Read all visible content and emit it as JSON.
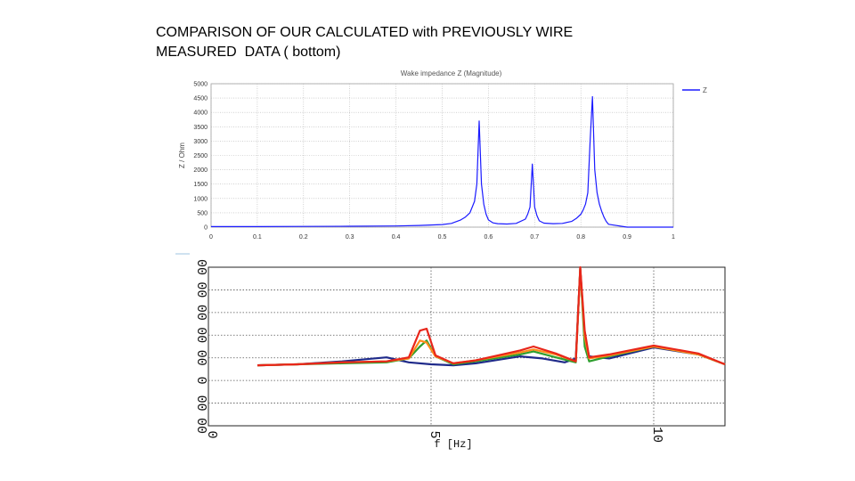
{
  "slide": {
    "title_line1": "COMPARISON OF OUR CALCULATED with PREVIOUSLY WIRE",
    "title_line2": "MEASURED  DATA ( bottom)"
  },
  "colors": {
    "top_line": "#1a1aff",
    "blue": "#1f2a8a",
    "green": "#2e9e2e",
    "orange": "#ff8c1a",
    "red": "#e8261a"
  },
  "chart_data": [
    {
      "type": "line",
      "title": "Wake impedance Z (Magnitude)",
      "xlabel": "",
      "ylabel": "Z / Ohm",
      "xlim": [
        0,
        1
      ],
      "ylim": [
        0,
        5000
      ],
      "xticks": [
        "0",
        "0.1",
        "0.2",
        "0.3",
        "0.4",
        "0.5",
        "0.6",
        "0.7",
        "0.8",
        "0.9",
        "1"
      ],
      "yticks": [
        "0",
        "500",
        "1000",
        "1500",
        "2000",
        "2500",
        "3000",
        "3500",
        "4000",
        "4500",
        "5000"
      ],
      "grid": true,
      "legend": "top-right",
      "series": [
        {
          "name": "Z",
          "color": "#1a1aff",
          "x": [
            0,
            0.1,
            0.2,
            0.3,
            0.4,
            0.45,
            0.5,
            0.52,
            0.54,
            0.55,
            0.56,
            0.565,
            0.57,
            0.575,
            0.58,
            0.585,
            0.59,
            0.595,
            0.6,
            0.61,
            0.62,
            0.64,
            0.66,
            0.68,
            0.685,
            0.69,
            0.695,
            0.7,
            0.705,
            0.71,
            0.72,
            0.74,
            0.76,
            0.78,
            0.79,
            0.8,
            0.805,
            0.81,
            0.815,
            0.82,
            0.825,
            0.83,
            0.835,
            0.84,
            0.845,
            0.85,
            0.855,
            0.86,
            0.9,
            1.0
          ],
          "y": [
            20,
            20,
            25,
            30,
            40,
            60,
            90,
            130,
            250,
            350,
            500,
            700,
            900,
            1500,
            3700,
            1500,
            800,
            450,
            250,
            150,
            120,
            110,
            130,
            280,
            450,
            700,
            2200,
            700,
            400,
            220,
            140,
            120,
            130,
            200,
            300,
            450,
            600,
            800,
            1200,
            3000,
            4550,
            2000,
            1200,
            800,
            550,
            350,
            200,
            100,
            0,
            0
          ]
        }
      ]
    },
    {
      "type": "line",
      "title": "",
      "xlabel": "f [Hz]",
      "ylabel": "",
      "xlim": [
        0,
        11.6
      ],
      "ylim": [
        -3,
        5
      ],
      "xticks": [
        "0",
        "5",
        "10"
      ],
      "yticks": [
        "00",
        "00",
        "00",
        "00",
        "00",
        "0",
        "00",
        "00"
      ],
      "grid": true,
      "legend": "none",
      "series": [
        {
          "color": "#1f2a8a",
          "x": [
            1.1,
            2,
            3,
            4,
            4.5,
            5,
            5.5,
            6,
            7,
            7.5,
            8,
            8.25,
            8.35,
            8.45,
            8.55,
            9,
            10,
            11,
            11.6
          ],
          "y": [
            0.05,
            0.1,
            0.25,
            0.45,
            0.2,
            0.1,
            0.05,
            0.15,
            0.5,
            0.4,
            0.2,
            0.4,
            4.9,
            1.5,
            0.5,
            0.4,
            0.95,
            0.6,
            0.1
          ]
        },
        {
          "color": "#2e9e2e",
          "x": [
            1.1,
            2,
            3,
            4,
            4.5,
            4.75,
            4.9,
            5.1,
            5.5,
            6,
            7,
            7.3,
            7.8,
            8.25,
            8.35,
            8.45,
            8.55,
            9,
            10,
            11,
            11.6
          ],
          "y": [
            0.05,
            0.1,
            0.15,
            0.2,
            0.4,
            1.0,
            1.3,
            0.5,
            0.1,
            0.25,
            0.6,
            0.75,
            0.45,
            0.2,
            4.95,
            1.0,
            0.25,
            0.5,
            1.0,
            0.6,
            0.1
          ]
        },
        {
          "color": "#ff8c1a",
          "x": [
            1.1,
            2,
            3,
            4,
            4.5,
            4.75,
            4.9,
            5.1,
            5.5,
            6,
            7,
            7.3,
            7.8,
            8.25,
            8.35,
            8.45,
            8.55,
            9,
            10,
            11,
            11.6
          ],
          "y": [
            0.05,
            0.1,
            0.2,
            0.25,
            0.4,
            1.3,
            1.2,
            0.5,
            0.15,
            0.3,
            0.7,
            0.85,
            0.6,
            0.25,
            4.9,
            1.5,
            0.4,
            0.55,
            1.0,
            0.6,
            0.1
          ]
        },
        {
          "color": "#e8261a",
          "x": [
            1.1,
            2,
            3,
            4,
            4.5,
            4.75,
            4.9,
            5.1,
            5.5,
            6,
            7,
            7.3,
            7.8,
            8.25,
            8.35,
            8.45,
            8.55,
            9,
            10,
            11,
            11.6
          ],
          "y": [
            0.05,
            0.1,
            0.2,
            0.25,
            0.45,
            1.8,
            1.9,
            0.55,
            0.15,
            0.3,
            0.8,
            1.0,
            0.65,
            0.25,
            5.0,
            1.8,
            0.45,
            0.6,
            1.05,
            0.65,
            0.1
          ]
        }
      ]
    }
  ]
}
